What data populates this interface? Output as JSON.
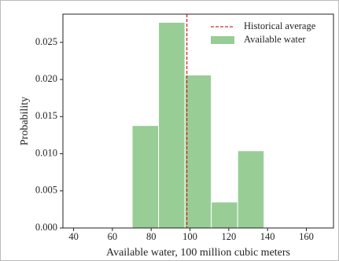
{
  "chart_data": {
    "type": "histogram",
    "xlabel": "Available water, 100 million cubic meters",
    "ylabel": "Probability",
    "bins": [
      70.2,
      83.8,
      97.4,
      111.0,
      124.6,
      138.2
    ],
    "series": [
      {
        "name": "Available water",
        "color": "#98cd96",
        "values": [
          0.0138,
          0.0277,
          0.0206,
          0.0035,
          0.0104
        ]
      }
    ],
    "vlines": [
      {
        "name": "Historical average",
        "x": 98.4,
        "color": "#d62728"
      }
    ],
    "xlim": [
      34.5,
      174
    ],
    "ylim": [
      0,
      0.0288
    ],
    "xticks": [
      40,
      60,
      80,
      100,
      120,
      140,
      160
    ],
    "yticks": [
      {
        "value": 0,
        "label": "0.000"
      },
      {
        "value": 0.005,
        "label": "0.005"
      },
      {
        "value": 0.01,
        "label": "0.010"
      },
      {
        "value": 0.015,
        "label": "0.015"
      },
      {
        "value": 0.02,
        "label": "0.020"
      },
      {
        "value": 0.025,
        "label": "0.025"
      }
    ],
    "legend": "upper right"
  }
}
